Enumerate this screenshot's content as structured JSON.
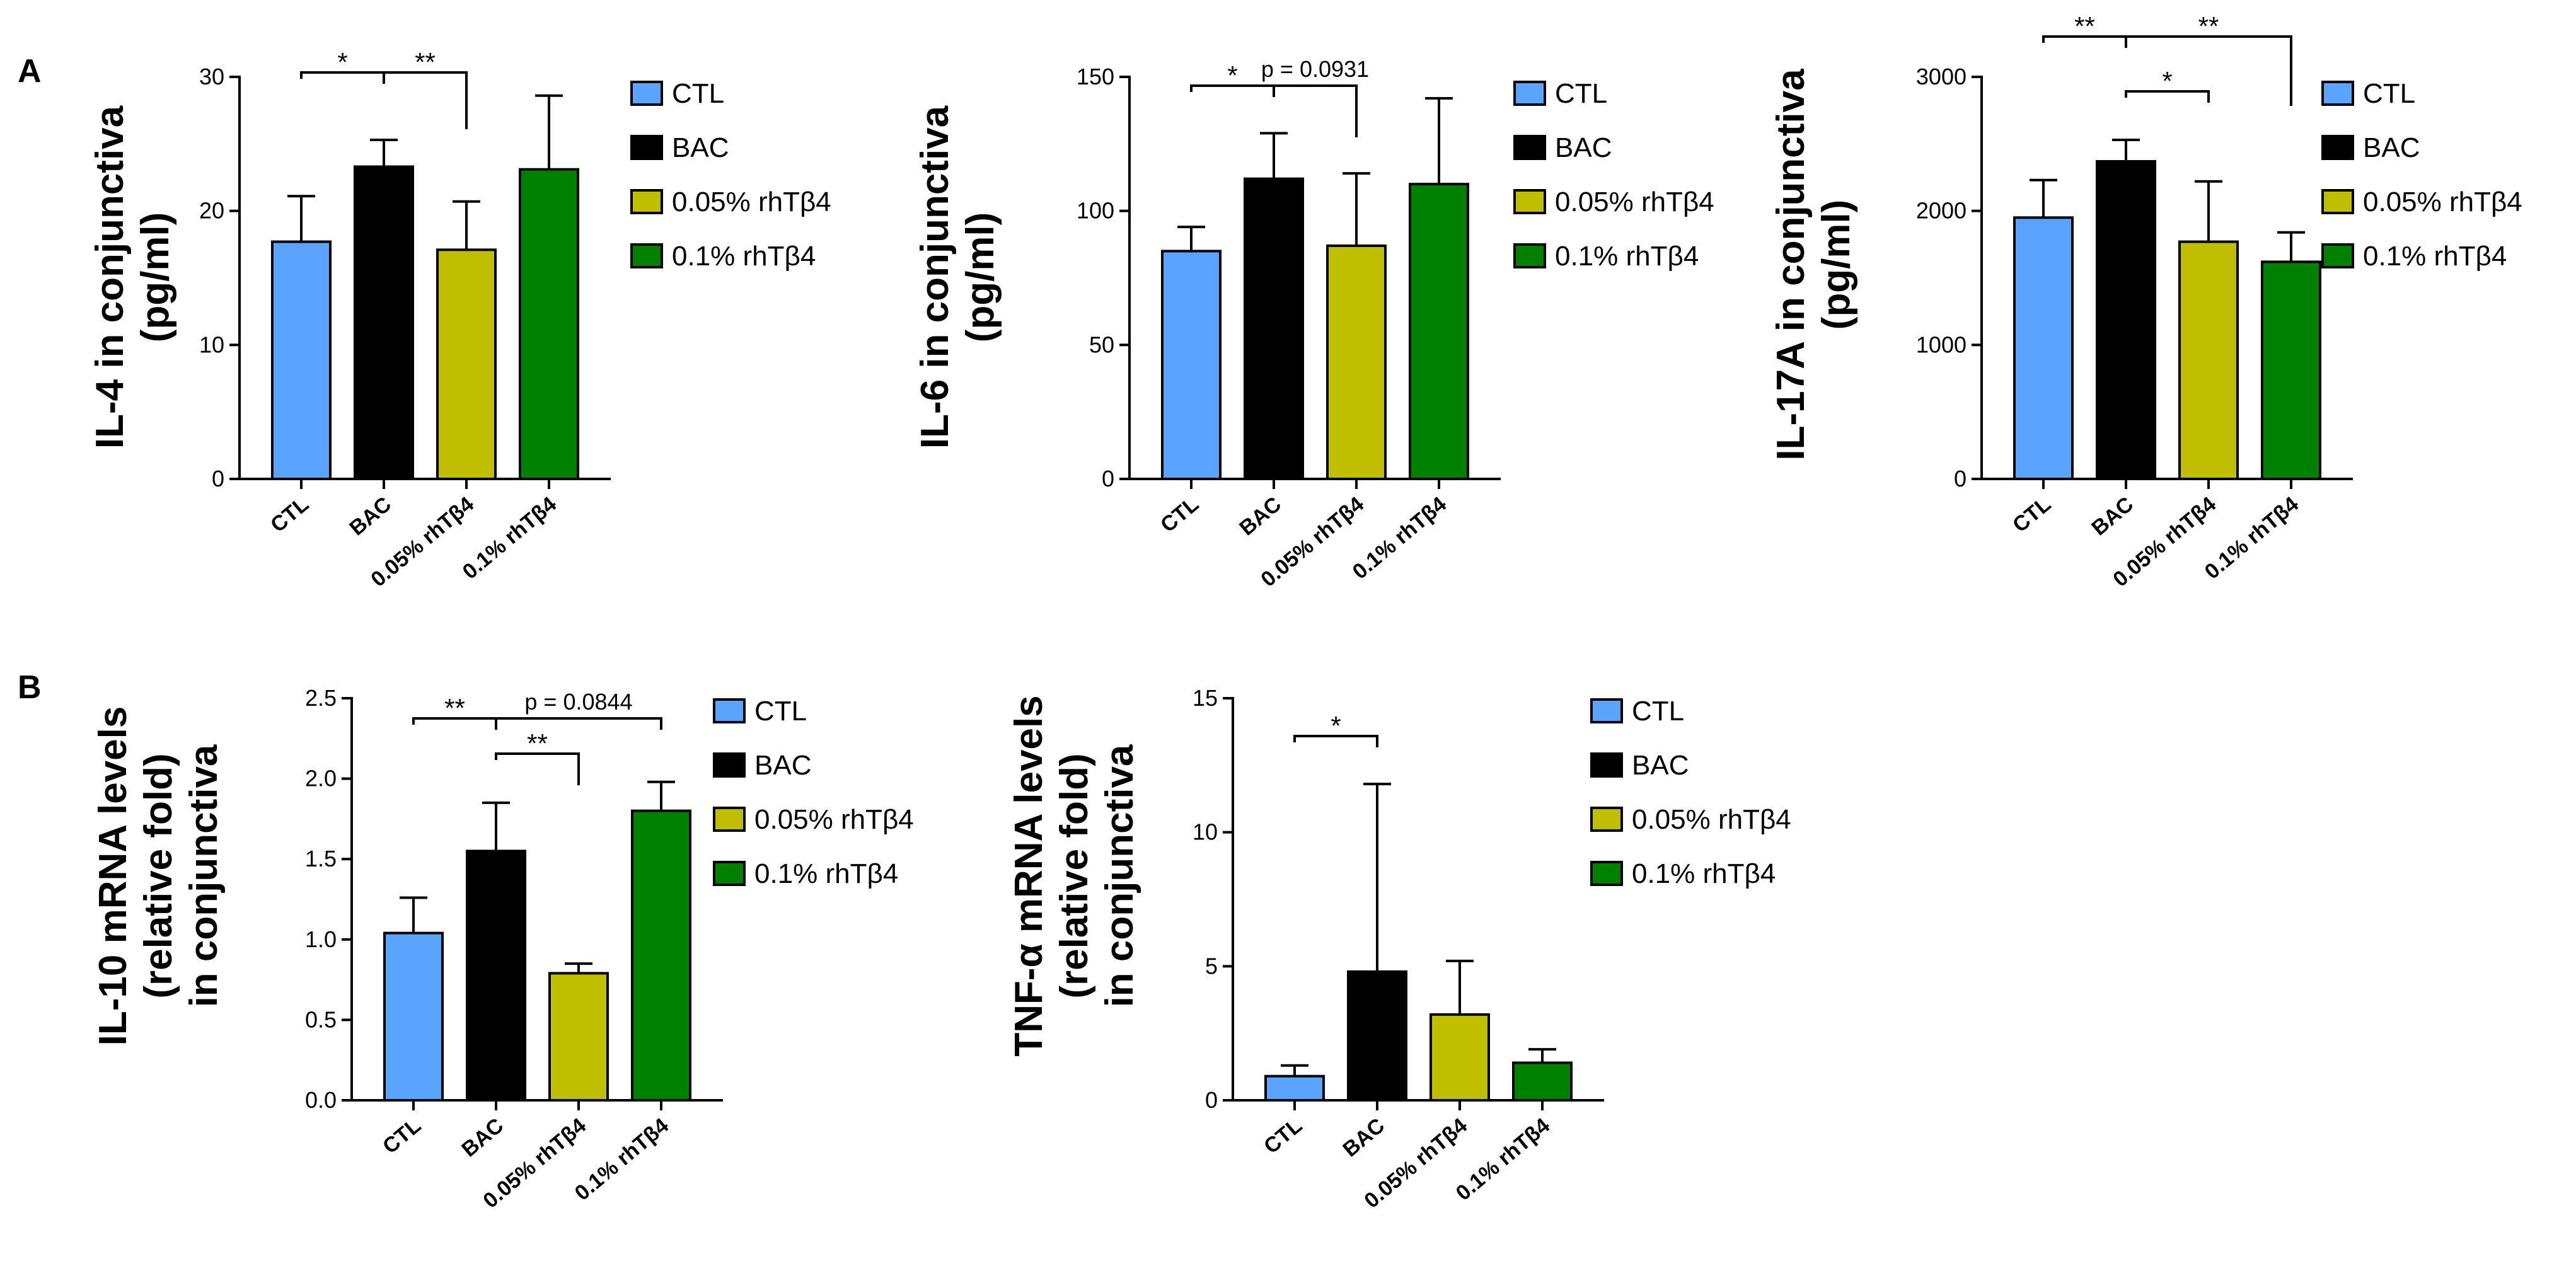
{
  "panel_labels": {
    "a": "A",
    "b": "B"
  },
  "colors": {
    "CTL": "#5aa4ff",
    "BAC": "#000000",
    "0.05% rhTβ4": "#bfbf00",
    "0.1% rhTβ4": "#008000"
  },
  "chart_data": [
    {
      "id": "il4",
      "panel": "A",
      "type": "bar",
      "title": "",
      "xlabel": "",
      "ylabel": [
        "IL-4 in conjunctiva",
        "(pg/ml)"
      ],
      "categories": [
        "CTL",
        "BAC",
        "0.05% rhTβ4",
        "0.1% rhTβ4"
      ],
      "values": [
        17.7,
        23.3,
        17.1,
        23.1
      ],
      "errors": [
        3.4,
        2.0,
        3.6,
        5.5
      ],
      "ylim": [
        0,
        30
      ],
      "yticks": [
        0,
        10,
        20,
        30
      ],
      "ytick_labels": [
        "0",
        "10",
        "20",
        "30"
      ],
      "legend": [
        "CTL",
        "BAC",
        "0.05% rhTβ4",
        "0.1% rhTβ4"
      ],
      "legend_position": "right",
      "annotations": [
        {
          "from": 0,
          "to": 1,
          "text": "*"
        },
        {
          "from": 1,
          "to": 2,
          "text": "**"
        }
      ]
    },
    {
      "id": "il6",
      "panel": "A",
      "type": "bar",
      "title": "",
      "xlabel": "",
      "ylabel": [
        "IL-6 in conjunctiva",
        "(pg/ml)"
      ],
      "categories": [
        "CTL",
        "BAC",
        "0.05% rhTβ4",
        "0.1% rhTβ4"
      ],
      "values": [
        85,
        112,
        87,
        110
      ],
      "errors": [
        9,
        17,
        27,
        32
      ],
      "ylim": [
        0,
        150
      ],
      "yticks": [
        0,
        50,
        100,
        150
      ],
      "ytick_labels": [
        "0",
        "50",
        "100",
        "150"
      ],
      "legend": [
        "CTL",
        "BAC",
        "0.05% rhTβ4",
        "0.1% rhTβ4"
      ],
      "legend_position": "right",
      "annotations": [
        {
          "from": 0,
          "to": 1,
          "text": "*"
        },
        {
          "from": 1,
          "to": 2,
          "text": "p = 0.0931"
        }
      ]
    },
    {
      "id": "il17a",
      "panel": "A",
      "type": "bar",
      "title": "",
      "xlabel": "",
      "ylabel": [
        "IL-17A in conjunctiva",
        "(pg/ml)"
      ],
      "categories": [
        "CTL",
        "BAC",
        "0.05% rhTβ4",
        "0.1% rhTβ4"
      ],
      "values": [
        1950,
        2370,
        1770,
        1620
      ],
      "errors": [
        280,
        160,
        450,
        220
      ],
      "ylim": [
        0,
        3000
      ],
      "yticks": [
        0,
        1000,
        2000,
        3000
      ],
      "ytick_labels": [
        "0",
        "1000",
        "2000",
        "3000"
      ],
      "legend": [
        "CTL",
        "BAC",
        "0.05% rhTβ4",
        "0.1% rhTβ4"
      ],
      "legend_position": "right",
      "annotations": [
        {
          "from": 0,
          "to": 1,
          "text": "**"
        },
        {
          "from": 1,
          "to": 2,
          "text": "*"
        },
        {
          "from": 1,
          "to": 3,
          "text": "**"
        }
      ]
    },
    {
      "id": "il10",
      "panel": "B",
      "type": "bar",
      "title": "",
      "xlabel": "",
      "ylabel": [
        "IL-10 mRNA levels",
        "(relative fold)",
        "in conjunctiva"
      ],
      "categories": [
        "CTL",
        "BAC",
        "0.05% rhTβ4",
        "0.1% rhTβ4"
      ],
      "values": [
        1.04,
        1.55,
        0.79,
        1.8
      ],
      "errors": [
        0.22,
        0.3,
        0.06,
        0.18
      ],
      "ylim": [
        0,
        2.5
      ],
      "yticks": [
        0,
        0.5,
        1.0,
        1.5,
        2.0,
        2.5
      ],
      "ytick_labels": [
        "0.0",
        "0.5",
        "1.0",
        "1.5",
        "2.0",
        "2.5"
      ],
      "legend": [
        "CTL",
        "BAC",
        "0.05% rhTβ4",
        "0.1% rhTβ4"
      ],
      "legend_position": "right",
      "annotations": [
        {
          "from": 0,
          "to": 1,
          "text": "**"
        },
        {
          "from": 1,
          "to": 2,
          "text": "**"
        },
        {
          "from": 1,
          "to": 3,
          "text": "p = 0.0844"
        }
      ]
    },
    {
      "id": "tnfa",
      "panel": "B",
      "type": "bar",
      "title": "",
      "xlabel": "",
      "ylabel": [
        "TNF-α mRNA levels",
        "(relative fold)",
        "in conjunctiva"
      ],
      "categories": [
        "CTL",
        "BAC",
        "0.05% rhTβ4",
        "0.1% rhTβ4"
      ],
      "values": [
        0.9,
        4.8,
        3.2,
        1.4
      ],
      "errors": [
        0.4,
        7.0,
        2.0,
        0.5
      ],
      "ylim": [
        0,
        15
      ],
      "yticks": [
        0,
        5,
        10,
        15
      ],
      "ytick_labels": [
        "0",
        "5",
        "10",
        "15"
      ],
      "legend": [
        "CTL",
        "BAC",
        "0.05% rhTβ4",
        "0.1% rhTβ4"
      ],
      "legend_position": "right",
      "annotations": [
        {
          "from": 0,
          "to": 1,
          "text": "*"
        }
      ]
    }
  ]
}
